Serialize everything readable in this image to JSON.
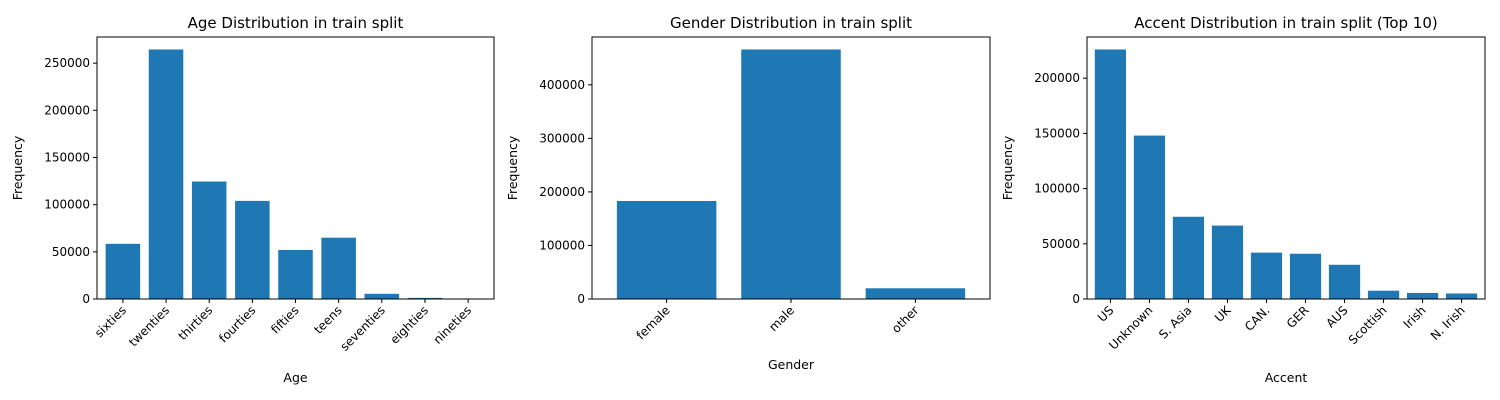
{
  "chart_data": [
    {
      "type": "bar",
      "title": "Age Distribution in train split",
      "xlabel": "Age",
      "ylabel": "Frequency",
      "categories": [
        "sixties",
        "twenties",
        "thirties",
        "fourties",
        "fifties",
        "teens",
        "seventies",
        "eighties",
        "nineties"
      ],
      "values": [
        58500,
        264500,
        124500,
        104000,
        52000,
        65000,
        5500,
        1200,
        300
      ],
      "ylim": [
        0,
        277725
      ],
      "yticks": [
        0,
        50000,
        100000,
        150000,
        200000,
        250000
      ],
      "color": "#1f77b4",
      "xtick_rotation": 45
    },
    {
      "type": "bar",
      "title": "Gender Distribution in train split",
      "xlabel": "Gender",
      "ylabel": "Frequency",
      "categories": [
        "female",
        "male",
        "other"
      ],
      "values": [
        183000,
        466000,
        20000
      ],
      "ylim": [
        0,
        489300
      ],
      "yticks": [
        0,
        100000,
        200000,
        300000,
        400000
      ],
      "color": "#1f77b4",
      "xtick_rotation": 45
    },
    {
      "type": "bar",
      "title": "Accent Distribution in train split (Top 10)",
      "xlabel": "Accent",
      "ylabel": "Frequency",
      "categories": [
        "US",
        "Unknown",
        "S. Asia",
        "UK",
        "CAN.",
        "GER",
        "AUS",
        "Scottish",
        "Irish",
        "N. Irish"
      ],
      "values": [
        226000,
        148000,
        74500,
        66500,
        42000,
        41000,
        31000,
        7500,
        5500,
        5000
      ],
      "ylim": [
        0,
        237300
      ],
      "yticks": [
        0,
        50000,
        100000,
        150000,
        200000
      ],
      "color": "#1f77b4",
      "xtick_rotation": 45
    }
  ]
}
